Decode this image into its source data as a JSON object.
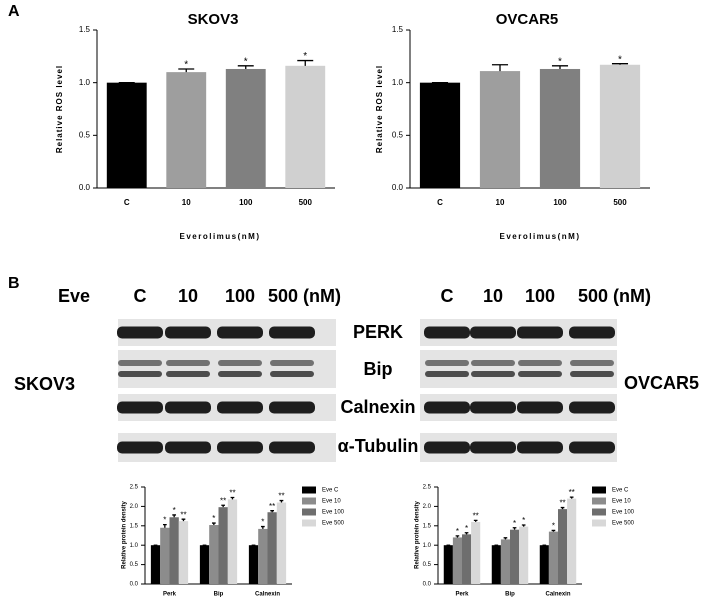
{
  "panels": [
    "A",
    "B"
  ],
  "blots": {
    "eve_label": "Eve",
    "left": {
      "lanes": [
        "C",
        "10",
        "100",
        "500 (nM)"
      ],
      "cell_line": "SKOV3"
    },
    "right": {
      "lanes": [
        "C",
        "10",
        "100",
        "500 (nM)"
      ],
      "cell_line": "OVCAR5"
    },
    "proteins": [
      "PERK",
      "Bip",
      "Calnexin",
      "α-Tubulin"
    ]
  },
  "chart_data": [
    {
      "type": "bar",
      "title": "SKOV3",
      "x_label": "Everolimus(nM)",
      "y_label": "Relative ROS level",
      "categories": [
        "C",
        "10",
        "100",
        "500"
      ],
      "values": [
        1.0,
        1.1,
        1.13,
        1.16
      ],
      "errors": [
        0,
        0.03,
        0.03,
        0.05
      ],
      "significance": [
        null,
        "*",
        "*",
        "*"
      ],
      "colors": [
        "#000000",
        "#9e9e9e",
        "#808080",
        "#d0d0d0"
      ],
      "ylim": [
        0,
        1.5
      ],
      "yticks": [
        {
          "value": 0,
          "label": "0.0"
        },
        0.5,
        {
          "value": 1,
          "label": "1.0"
        },
        1.5
      ]
    },
    {
      "type": "bar",
      "title": "OVCAR5",
      "x_label": "Everolimus(nM)",
      "y_label": "Relative ROS level",
      "categories": [
        "C",
        "10",
        "100",
        "500"
      ],
      "values": [
        1.0,
        1.11,
        1.13,
        1.17
      ],
      "errors": [
        0,
        0.06,
        0.03,
        0.01
      ],
      "significance": [
        null,
        null,
        "*",
        "*"
      ],
      "colors": [
        "#000000",
        "#9e9e9e",
        "#808080",
        "#d0d0d0"
      ],
      "ylim": [
        0,
        1.5
      ],
      "yticks": [
        {
          "value": 0,
          "label": "0.0"
        },
        0.5,
        {
          "value": 1,
          "label": "1.0"
        },
        1.5
      ]
    },
    {
      "type": "grouped_bar",
      "y_label": "Relative protein density",
      "categories": [
        "Perk",
        "Bip",
        "Calnexin"
      ],
      "series": [
        {
          "name": "Eve C",
          "color": "#000000",
          "values": [
            1.0,
            1.0,
            1.0
          ],
          "errors": [
            0,
            0,
            0
          ],
          "significance": [
            null,
            null,
            null
          ]
        },
        {
          "name": "Eve 10",
          "color": "#8c8c8c",
          "values": [
            1.45,
            1.52,
            1.42
          ],
          "errors": [
            0.08,
            0.05,
            0.06
          ],
          "significance": [
            "*",
            "*",
            "*"
          ]
        },
        {
          "name": "Eve 100",
          "color": "#6e6e6e",
          "values": [
            1.72,
            1.98,
            1.85
          ],
          "errors": [
            0.06,
            0.05,
            0.04
          ],
          "significance": [
            "*",
            "**",
            "**"
          ]
        },
        {
          "name": "Eve 500",
          "color": "#d8d8d8",
          "values": [
            1.62,
            2.18,
            2.1
          ],
          "errors": [
            0.05,
            0.05,
            0.05
          ],
          "significance": [
            "**",
            "**",
            "**"
          ]
        }
      ],
      "ylim": [
        0,
        2.5
      ],
      "yticks": [
        {
          "value": 0,
          "label": "0.0"
        },
        0.5,
        {
          "value": 1,
          "label": "1.0"
        },
        1.5,
        {
          "value": 2,
          "label": "2.0"
        },
        2.5
      ]
    },
    {
      "type": "grouped_bar",
      "y_label": "Relative protein density",
      "categories": [
        "Perk",
        "Bip",
        "Calnexin"
      ],
      "series": [
        {
          "name": "Eve C",
          "color": "#000000",
          "values": [
            1.0,
            1.0,
            1.0
          ],
          "errors": [
            0,
            0,
            0
          ],
          "significance": [
            null,
            null,
            null
          ]
        },
        {
          "name": "Eve 10",
          "color": "#8c8c8c",
          "values": [
            1.2,
            1.15,
            1.35
          ],
          "errors": [
            0.04,
            0.04,
            0.03
          ],
          "significance": [
            "*",
            null,
            "*"
          ]
        },
        {
          "name": "Eve 100",
          "color": "#6e6e6e",
          "values": [
            1.28,
            1.4,
            1.93
          ],
          "errors": [
            0.04,
            0.05,
            0.04
          ],
          "significance": [
            "*",
            "*",
            "**"
          ]
        },
        {
          "name": "Eve 500",
          "color": "#d8d8d8",
          "values": [
            1.6,
            1.48,
            2.2
          ],
          "errors": [
            0.04,
            0.04,
            0.04
          ],
          "significance": [
            "**",
            "*",
            "**"
          ]
        }
      ],
      "ylim": [
        0,
        2.5
      ],
      "yticks": [
        {
          "value": 0,
          "label": "0.0"
        },
        0.5,
        {
          "value": 1,
          "label": "1.0"
        },
        1.5,
        {
          "value": 2,
          "label": "2.0"
        },
        2.5
      ]
    }
  ]
}
